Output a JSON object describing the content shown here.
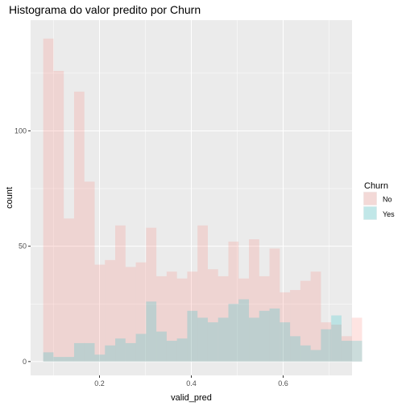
{
  "chart_data": {
    "type": "histogram",
    "title": "Histograma do valor predito por Churn",
    "xlabel": "valid_pred",
    "ylabel": "count",
    "x_range": [
      0.05,
      0.75
    ],
    "y_range": [
      -6,
      148
    ],
    "x_ticks": [
      0.2,
      0.4,
      0.6
    ],
    "x_tick_labels": [
      "0.2",
      "0.4",
      "0.6"
    ],
    "y_ticks": [
      0,
      50,
      100
    ],
    "y_tick_labels": [
      "0",
      "50",
      "100"
    ],
    "grid": true,
    "legend": {
      "title": "Churn",
      "position": "right"
    },
    "bins": {
      "start": 0.0775,
      "width": 0.0224,
      "count": 31
    },
    "series": [
      {
        "name": "No",
        "color": "#F8766D",
        "values": [
          140,
          126,
          62,
          117,
          78,
          42,
          44,
          59,
          41,
          43,
          58,
          37,
          39,
          36,
          39,
          59,
          40,
          37,
          52,
          36,
          53,
          37,
          49,
          30,
          31,
          35,
          39,
          17,
          16,
          11,
          19
        ]
      },
      {
        "name": "Yes",
        "color": "#00BFC4",
        "values": [
          4,
          2,
          2,
          8,
          8,
          3,
          7,
          10,
          8,
          12,
          26,
          13,
          9,
          10,
          22,
          19,
          17,
          19,
          25,
          27,
          19,
          22,
          23,
          17,
          11,
          7,
          5,
          14,
          20,
          9,
          9
        ]
      }
    ]
  }
}
